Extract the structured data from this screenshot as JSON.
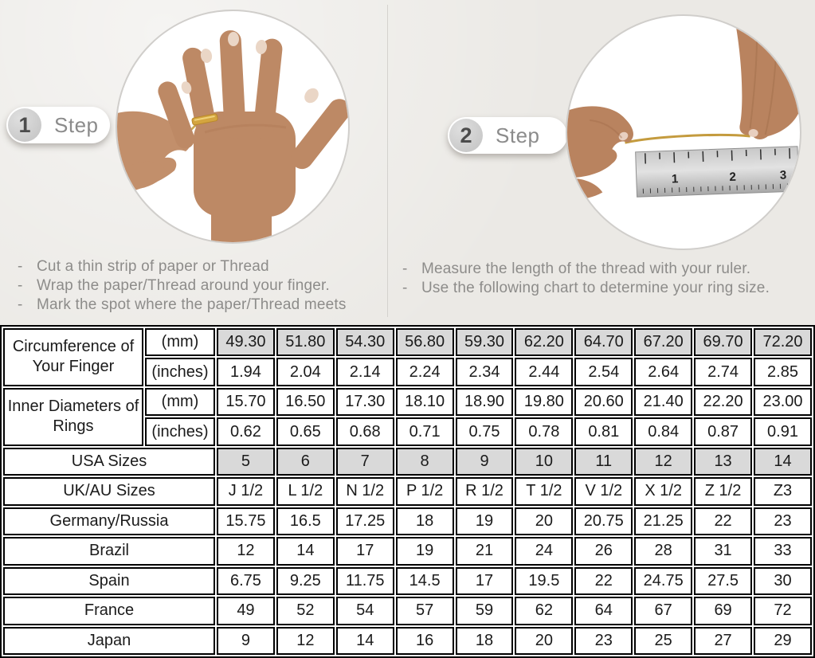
{
  "bullet": "-",
  "steps": [
    {
      "number": "1",
      "label": "Step",
      "instructions": [
        "Cut a thin strip of paper or Thread",
        "Wrap the paper/Thread around your finger.",
        "Mark the spot where the paper/Thread meets"
      ]
    },
    {
      "number": "2",
      "label": "Step",
      "instructions": [
        "Measure the length of the thread with your ruler.",
        "Use the following chart to determine your ring size."
      ]
    }
  ],
  "illustrations": {
    "ruler_numbers": [
      "1",
      "2",
      "3"
    ]
  },
  "size_chart": {
    "row_groups": [
      {
        "label": "Circumference of Your Finger",
        "rows": [
          {
            "unit": "(mm)",
            "shaded": true,
            "values": [
              "49.30",
              "51.80",
              "54.30",
              "56.80",
              "59.30",
              "62.20",
              "64.70",
              "67.20",
              "69.70",
              "72.20"
            ]
          },
          {
            "unit": "(inches)",
            "shaded": false,
            "values": [
              "1.94",
              "2.04",
              "2.14",
              "2.24",
              "2.34",
              "2.44",
              "2.54",
              "2.64",
              "2.74",
              "2.85"
            ]
          }
        ]
      },
      {
        "label": "Inner Diameters of Rings",
        "rows": [
          {
            "unit": "(mm)",
            "shaded": false,
            "values": [
              "15.70",
              "16.50",
              "17.30",
              "18.10",
              "18.90",
              "19.80",
              "20.60",
              "21.40",
              "22.20",
              "23.00"
            ]
          },
          {
            "unit": "(inches)",
            "shaded": false,
            "values": [
              "0.62",
              "0.65",
              "0.68",
              "0.71",
              "0.75",
              "0.78",
              "0.81",
              "0.84",
              "0.87",
              "0.91"
            ]
          }
        ]
      }
    ],
    "simple_rows": [
      {
        "label": "USA Sizes",
        "shaded": true,
        "values": [
          "5",
          "6",
          "7",
          "8",
          "9",
          "10",
          "11",
          "12",
          "13",
          "14"
        ]
      },
      {
        "label": "UK/AU Sizes",
        "shaded": false,
        "values": [
          "J 1/2",
          "L 1/2",
          "N 1/2",
          "P 1/2",
          "R 1/2",
          "T 1/2",
          "V 1/2",
          "X 1/2",
          "Z 1/2",
          "Z3"
        ]
      },
      {
        "label": "Germany/Russia",
        "shaded": false,
        "values": [
          "15.75",
          "16.5",
          "17.25",
          "18",
          "19",
          "20",
          "20.75",
          "21.25",
          "22",
          "23"
        ]
      },
      {
        "label": "Brazil",
        "shaded": false,
        "values": [
          "12",
          "14",
          "17",
          "19",
          "21",
          "24",
          "26",
          "28",
          "31",
          "33"
        ]
      },
      {
        "label": "Spain",
        "shaded": false,
        "values": [
          "6.75",
          "9.25",
          "11.75",
          "14.5",
          "17",
          "19.5",
          "22",
          "24.75",
          "27.5",
          "30"
        ]
      },
      {
        "label": "France",
        "shaded": false,
        "values": [
          "49",
          "52",
          "54",
          "57",
          "59",
          "62",
          "64",
          "67",
          "69",
          "72"
        ]
      },
      {
        "label": "Japan",
        "shaded": false,
        "values": [
          "9",
          "12",
          "14",
          "16",
          "18",
          "20",
          "23",
          "25",
          "27",
          "29"
        ]
      }
    ]
  },
  "colors": {
    "page_bg": "#ebe9e5",
    "shaded_cell": "#d9d9d9",
    "table_border": "#000000",
    "instruction_text": "#8d8c8a",
    "badge_text": "#8b8b8b",
    "ring_gold": "#d4a53f",
    "skin": "#bd8965"
  }
}
